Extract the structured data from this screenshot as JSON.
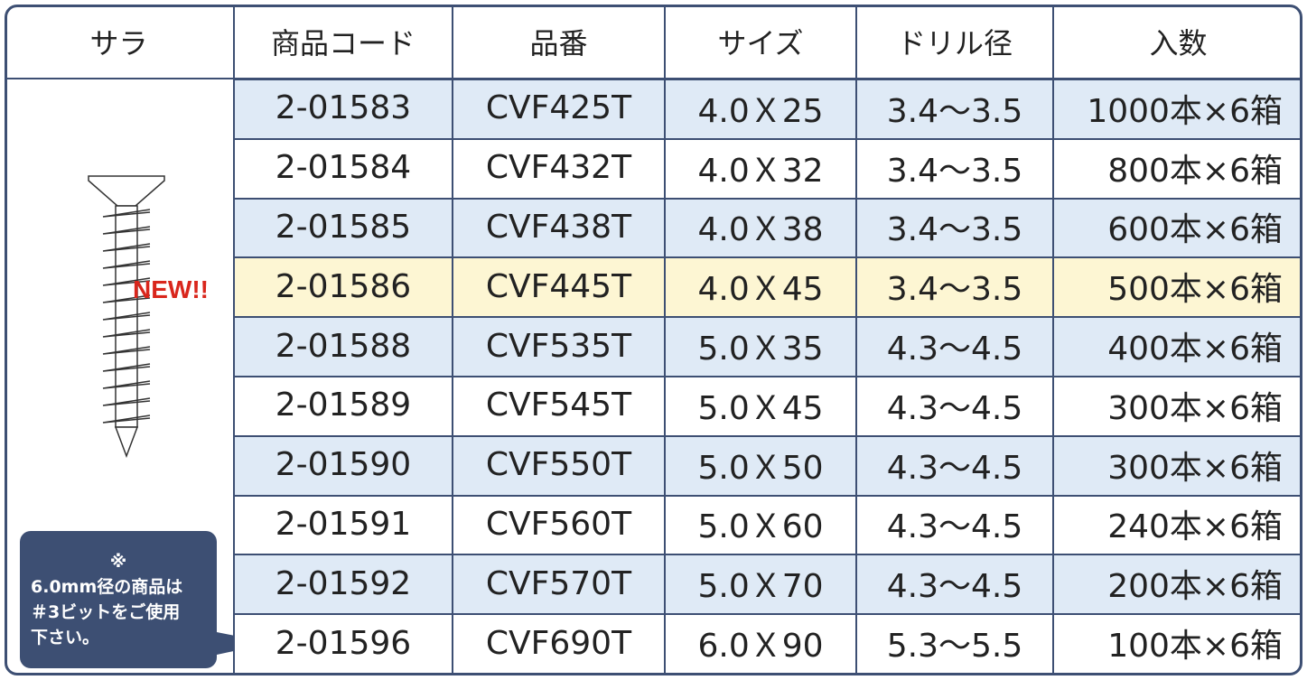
{
  "header": [
    "サラ",
    "商品コード",
    "品番",
    "サイズ",
    "ドリル径",
    "入数"
  ],
  "rows": [
    [
      "2-01583",
      "CVF425T",
      "4.0Ｘ25",
      "3.4～3.5",
      "1000本×6箱"
    ],
    [
      "2-01584",
      "CVF432T",
      "4.0Ｘ32",
      "3.4～3.5",
      "800本×6箱"
    ],
    [
      "2-01585",
      "CVF438T",
      "4.0Ｘ38",
      "3.4～3.5",
      "600本×6箱"
    ],
    [
      "2-01586",
      "CVF445T",
      "4.0Ｘ45",
      "3.4～3.5",
      "500本×6箱"
    ],
    [
      "2-01588",
      "CVF535T",
      "5.0Ｘ35",
      "4.3～4.5",
      "400本×6箱"
    ],
    [
      "2-01589",
      "CVF545T",
      "5.0Ｘ45",
      "4.3～4.5",
      "300本×6箱"
    ],
    [
      "2-01590",
      "CVF550T",
      "5.0Ｘ50",
      "4.3～4.5",
      "300本×6箱"
    ],
    [
      "2-01591",
      "CVF560T",
      "5.0Ｘ60",
      "4.3～4.5",
      "240本×6箱"
    ],
    [
      "2-01592",
      "CVF570T",
      "5.0Ｘ70",
      "4.3～4.5",
      "200本×6箱"
    ],
    [
      "2-01596",
      "CVF690T",
      "6.0Ｘ90",
      "5.3～5.5",
      "100本×6箱"
    ]
  ],
  "left": {
    "badge": "NEW!!",
    "note": [
      "※",
      "6.0mm径の商品は",
      "＃3ビットをご使用",
      "下さい。"
    ]
  }
}
